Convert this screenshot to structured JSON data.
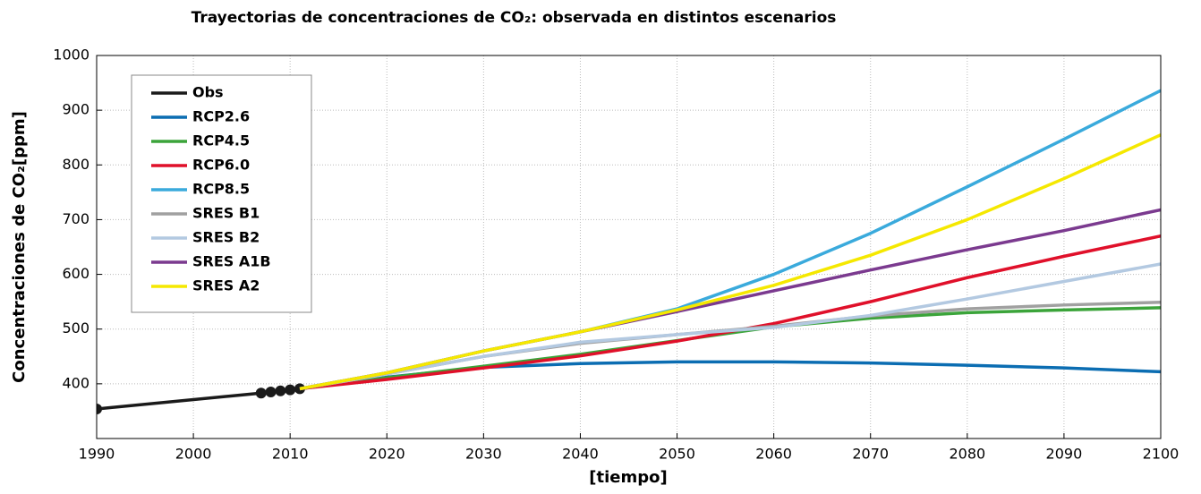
{
  "chart_data": {
    "type": "line",
    "title": "Trayectorias de concentraciones de CO₂: observada en distintos escenarios",
    "xlabel": "[tiempo]",
    "ylabel": "Concentraciones de CO₂[ppm]",
    "xlim": [
      1990,
      2100
    ],
    "xticks": [
      1990,
      2000,
      2010,
      2020,
      2030,
      2040,
      2050,
      2060,
      2070,
      2080,
      2090,
      2100
    ],
    "ylim": [
      300,
      1000
    ],
    "yticks": [
      400,
      500,
      600,
      700,
      800,
      900,
      1000
    ],
    "grid": true,
    "legend": "upper left",
    "series": [
      {
        "name": "Obs",
        "color": "#1a1a1a",
        "marker": "o",
        "x": [
          1990,
          2007,
          2008,
          2009,
          2010,
          2011
        ],
        "values": [
          354,
          383,
          385,
          387,
          389,
          391
        ]
      },
      {
        "name": "RCP2.6",
        "color": "#0b6db2",
        "x": [
          2011,
          2020,
          2030,
          2040,
          2050,
          2060,
          2070,
          2080,
          2090,
          2100
        ],
        "values": [
          391,
          412,
          430,
          437,
          440,
          440,
          438,
          434,
          429,
          422
        ]
      },
      {
        "name": "RCP4.5",
        "color": "#3ba43a",
        "x": [
          2011,
          2020,
          2030,
          2040,
          2050,
          2060,
          2070,
          2080,
          2090,
          2100
        ],
        "values": [
          391,
          411,
          432,
          454,
          479,
          504,
          520,
          530,
          535,
          539
        ]
      },
      {
        "name": "RCP6.0",
        "color": "#e0102a",
        "x": [
          2011,
          2020,
          2030,
          2040,
          2050,
          2060,
          2070,
          2080,
          2090,
          2100
        ],
        "values": [
          391,
          408,
          429,
          451,
          478,
          510,
          550,
          594,
          633,
          670
        ]
      },
      {
        "name": "RCP8.5",
        "color": "#3aaadc",
        "x": [
          2011,
          2020,
          2030,
          2040,
          2050,
          2060,
          2070,
          2080,
          2090,
          2100
        ],
        "values": [
          391,
          420,
          460,
          495,
          537,
          600,
          675,
          760,
          847,
          936
        ]
      },
      {
        "name": "SRES B1",
        "color": "#a0a0a0",
        "x": [
          2011,
          2020,
          2030,
          2040,
          2050,
          2060,
          2070,
          2080,
          2090,
          2100
        ],
        "values": [
          391,
          418,
          450,
          474,
          490,
          505,
          524,
          537,
          544,
          549
        ]
      },
      {
        "name": "SRES B2",
        "color": "#b3c9e1",
        "x": [
          2011,
          2020,
          2030,
          2040,
          2050,
          2060,
          2070,
          2080,
          2090,
          2100
        ],
        "values": [
          391,
          418,
          450,
          476,
          490,
          503,
          525,
          555,
          587,
          619
        ]
      },
      {
        "name": "SRES A1B",
        "color": "#7b3a8f",
        "x": [
          2011,
          2020,
          2030,
          2040,
          2050,
          2060,
          2070,
          2080,
          2090,
          2100
        ],
        "values": [
          391,
          420,
          460,
          495,
          532,
          570,
          608,
          645,
          680,
          718
        ]
      },
      {
        "name": "SRES A2",
        "color": "#f5e800",
        "x": [
          2011,
          2020,
          2030,
          2040,
          2050,
          2060,
          2070,
          2080,
          2090,
          2100
        ],
        "values": [
          391,
          420,
          460,
          495,
          535,
          580,
          635,
          700,
          775,
          855
        ]
      }
    ]
  }
}
